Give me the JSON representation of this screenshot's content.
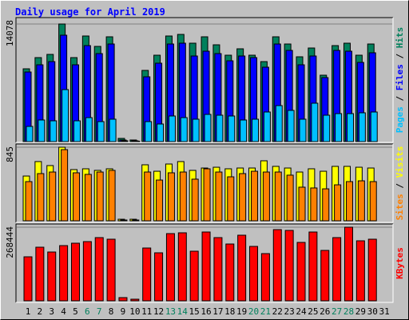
{
  "chart_data": [
    {
      "type": "bar",
      "title": "Daily usage for April 2019",
      "legend_separator": " / ",
      "ylim": [
        0,
        14078
      ],
      "yticks": [
        14078
      ],
      "series": [
        {
          "name": "Hits",
          "color": "#00805c",
          "values": [
            8715,
            10056,
            10439,
            14078,
            10056,
            12642,
            11397,
            12546,
            383,
            192,
            8524,
            10343,
            12642,
            12833,
            11780,
            12546,
            11588,
            10343,
            11109,
            10343,
            9577,
            12546,
            11684,
            10152,
            11205,
            7949,
            11492,
            11780,
            10343,
            11684,
            0
          ]
        },
        {
          "name": "Files",
          "color": "#0000ff",
          "values": [
            8332,
            9194,
            9577,
            12738,
            9194,
            11492,
            10535,
            11684,
            192,
            96,
            7757,
            9386,
            11684,
            11780,
            10248,
            10822,
            10535,
            9673,
            10248,
            10056,
            8907,
            11684,
            10918,
            9194,
            10248,
            7662,
            10918,
            10822,
            9481,
            10631,
            0
          ]
        },
        {
          "name": "Pages",
          "color": "#00c0ff",
          "values": [
            1820,
            2586,
            2490,
            6225,
            2490,
            2873,
            2394,
            2682,
            96,
            50,
            2394,
            2107,
            3065,
            2873,
            2682,
            3256,
            3160,
            3065,
            2586,
            2682,
            3543,
            4310,
            3735,
            2682,
            4597,
            3160,
            3352,
            3352,
            3448,
            3543,
            0
          ]
        }
      ]
    },
    {
      "type": "bar",
      "legend_separator": " / ",
      "ylim": [
        0,
        845
      ],
      "yticks": [
        845
      ],
      "series": [
        {
          "name": "Visits",
          "color": "#ffff00",
          "values": [
            514,
            680,
            634,
            845,
            588,
            597,
            579,
            597,
            18,
            18,
            643,
            569,
            652,
            680,
            579,
            606,
            615,
            597,
            606,
            606,
            689,
            625,
            606,
            560,
            597,
            569,
            625,
            625,
            615,
            606,
            0
          ]
        },
        {
          "name": "Sites",
          "color": "#ff8000",
          "values": [
            450,
            542,
            560,
            817,
            551,
            533,
            560,
            579,
            9,
            9,
            560,
            468,
            551,
            560,
            478,
            597,
            560,
            505,
            542,
            569,
            560,
            560,
            524,
            386,
            377,
            367,
            413,
            450,
            459,
            450,
            0
          ]
        }
      ]
    },
    {
      "type": "bar",
      "ylim": [
        0,
        268444
      ],
      "yticks": [
        268444
      ],
      "series": [
        {
          "name": "KBytes",
          "color": "#ff0000",
          "values": [
            160483,
            195497,
            177990,
            201333,
            210086,
            215922,
            230511,
            224675,
            11672,
            5836,
            192579,
            175072,
            245101,
            248019,
            180908,
            250937,
            230511,
            207168,
            239265,
            198416,
            172154,
            259690,
            256772,
            213004,
            250937,
            183826,
            230511,
            268444,
            218840,
            224675,
            0
          ]
        }
      ],
      "categories": [
        "1",
        "2",
        "3",
        "4",
        "5",
        "6",
        "7",
        "8",
        "9",
        "10",
        "11",
        "12",
        "13",
        "14",
        "15",
        "16",
        "17",
        "18",
        "19",
        "20",
        "21",
        "22",
        "23",
        "24",
        "25",
        "26",
        "27",
        "28",
        "29",
        "30",
        "31"
      ],
      "category_colors": [
        "#000000",
        "#000000",
        "#000000",
        "#000000",
        "#000000",
        "#00805c",
        "#00805c",
        "#000000",
        "#000000",
        "#000000",
        "#000000",
        "#000000",
        "#00805c",
        "#00805c",
        "#000000",
        "#000000",
        "#000000",
        "#000000",
        "#000000",
        "#00805c",
        "#00805c",
        "#000000",
        "#000000",
        "#000000",
        "#000000",
        "#000000",
        "#00805c",
        "#00805c",
        "#000000",
        "#000000",
        "#000000"
      ]
    }
  ]
}
